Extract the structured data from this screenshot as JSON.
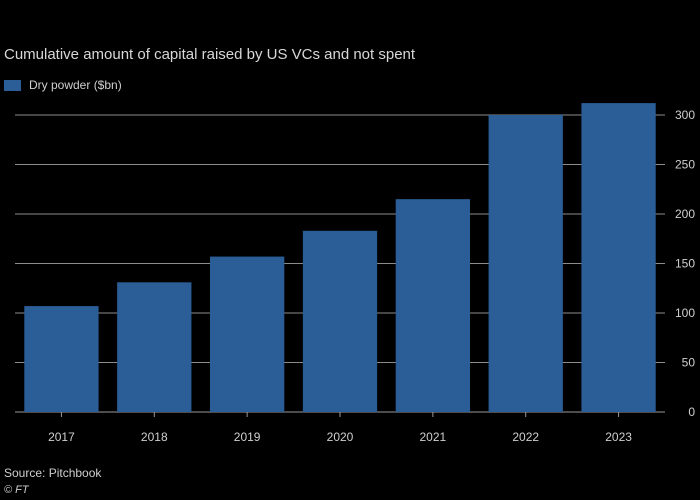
{
  "chart_data": {
    "type": "bar",
    "title": "Cumulative amount of capital raised by US VCs and not spent",
    "categories": [
      "2017",
      "2018",
      "2019",
      "2020",
      "2021",
      "2022",
      "2023"
    ],
    "series": [
      {
        "name": "Dry powder ($bn)",
        "values": [
          107,
          131,
          157,
          183,
          215,
          300,
          312
        ]
      }
    ],
    "xlabel": "",
    "ylabel": "",
    "ylim": [
      0,
      300
    ],
    "yticks": [
      0,
      50,
      100,
      150,
      200,
      250,
      300
    ],
    "grid": true,
    "legend_position": "top-left",
    "colors": {
      "bar": "#2b5d97",
      "grid": "#ffffff",
      "text": "#cfcfcf"
    }
  },
  "footer": {
    "source": "Source: Pitchbook",
    "credit": "© FT"
  }
}
